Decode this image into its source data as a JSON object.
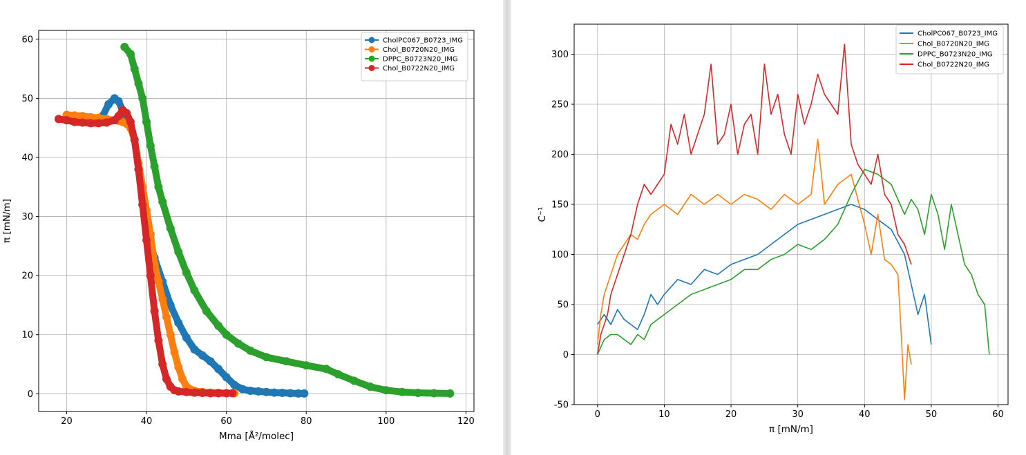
{
  "chart_data": [
    {
      "type": "scatter",
      "xlabel": "Mma [Å²/molec]",
      "ylabel": "π [mN/m]",
      "xlim": [
        13,
        122
      ],
      "ylim": [
        -3,
        61.5
      ],
      "xticks": [
        20,
        40,
        60,
        80,
        100,
        120
      ],
      "yticks": [
        0,
        10,
        20,
        30,
        40,
        50,
        60
      ],
      "grid": true,
      "legend_position": "top-right",
      "series": [
        {
          "name": "CholPC067_B0723_IMG",
          "color": "#1f77b4",
          "x": [
            29,
            30.5,
            32,
            33,
            34,
            35,
            36,
            37,
            38,
            39,
            40,
            42,
            44,
            46,
            48,
            50,
            52,
            54,
            56,
            58,
            60,
            62,
            64,
            66,
            68,
            70,
            72,
            74,
            76,
            78,
            79.5
          ],
          "y": [
            47,
            49,
            50,
            49.5,
            48,
            46,
            45,
            43,
            38,
            32,
            28,
            23,
            19,
            15,
            12,
            9.5,
            7.5,
            6.5,
            5.5,
            4.2,
            2.8,
            1.5,
            0.8,
            0.5,
            0.4,
            0.3,
            0.2,
            0.15,
            0.1,
            0.05,
            0.05
          ]
        },
        {
          "name": "Chol_B0720N20_IMG",
          "color": "#ff7f0e",
          "x": [
            20,
            22,
            24,
            26,
            28,
            30,
            32,
            33,
            34,
            35,
            36,
            37,
            38,
            39,
            40,
            41,
            42,
            43,
            44,
            45,
            46,
            47,
            48,
            49,
            50,
            52,
            54,
            56,
            58,
            60,
            62
          ],
          "y": [
            47.2,
            47.1,
            47,
            46.8,
            46.7,
            46.5,
            46.3,
            46.2,
            46,
            45.7,
            45,
            43,
            39,
            35,
            31,
            27,
            22,
            19,
            16,
            13,
            10,
            7,
            4.5,
            2.5,
            1.2,
            0.5,
            0.3,
            0.2,
            0.15,
            0.1,
            0.1
          ]
        },
        {
          "name": "DPPC_B0723N20_IMG",
          "color": "#2ca02c",
          "x": [
            34.5,
            36,
            37,
            38,
            39,
            40,
            41,
            42,
            43,
            44,
            46,
            48,
            50,
            52,
            55,
            58,
            60,
            63,
            66,
            70,
            75,
            80,
            85,
            88,
            92,
            96,
            100,
            104,
            108,
            112,
            116
          ],
          "y": [
            58.7,
            57.5,
            55,
            52.5,
            50,
            46,
            42,
            38.5,
            35,
            32.5,
            28,
            24,
            20.5,
            17.5,
            14,
            11.5,
            10,
            8.5,
            7.3,
            6.2,
            5.5,
            4.8,
            4.2,
            3.3,
            2.2,
            1.2,
            0.6,
            0.3,
            0.15,
            0.1,
            0.05
          ]
        },
        {
          "name": "Chol_B0722N20_IMG",
          "color": "#d62728",
          "x": [
            18,
            20,
            22,
            24,
            26,
            28,
            30,
            32,
            33,
            34,
            35,
            36,
            37,
            38,
            39,
            40,
            41,
            42,
            43,
            44,
            45,
            46,
            47,
            48,
            50,
            52,
            54,
            56,
            58,
            60,
            61.5
          ],
          "y": [
            46.5,
            46.3,
            46,
            45.9,
            45.8,
            45.8,
            45.9,
            46.3,
            47,
            48,
            47.5,
            46,
            43,
            38,
            32,
            26,
            20,
            14,
            9,
            5,
            2.5,
            1.2,
            0.6,
            0.4,
            0.3,
            0.2,
            0.15,
            0.1,
            0.1,
            0.1,
            0.1
          ]
        }
      ]
    },
    {
      "type": "line",
      "xlabel": "π [mN/m]",
      "ylabel": "C⁻¹",
      "xlim": [
        -3.5,
        61.5
      ],
      "ylim": [
        -50,
        330
      ],
      "xticks": [
        0,
        10,
        20,
        30,
        40,
        50,
        60
      ],
      "yticks": [
        -50,
        0,
        50,
        100,
        150,
        200,
        250,
        300
      ],
      "grid": true,
      "legend_position": "top-right",
      "series": [
        {
          "name": "CholPC067_B0723_IMG",
          "color": "#1f77b4",
          "x": [
            0,
            1,
            2,
            3,
            4,
            5,
            6,
            7,
            8,
            9,
            10,
            12,
            14,
            16,
            18,
            20,
            22,
            24,
            26,
            28,
            30,
            32,
            34,
            36,
            38,
            40,
            42,
            44,
            46,
            47,
            48,
            49,
            50
          ],
          "y": [
            30,
            40,
            30,
            45,
            35,
            30,
            25,
            40,
            60,
            50,
            60,
            75,
            70,
            85,
            80,
            90,
            95,
            100,
            110,
            120,
            130,
            135,
            140,
            145,
            150,
            145,
            135,
            125,
            100,
            70,
            40,
            60,
            10
          ]
        },
        {
          "name": "Chol_B0720N20_IMG",
          "color": "#ff7f0e",
          "x": [
            0,
            0.5,
            1,
            2,
            3,
            4,
            5,
            6,
            7,
            8,
            10,
            12,
            14,
            16,
            18,
            20,
            22,
            24,
            26,
            28,
            30,
            32,
            33,
            34,
            36,
            38,
            40,
            41,
            42,
            43,
            44,
            45,
            45.5,
            46,
            46.5,
            47
          ],
          "y": [
            10,
            40,
            60,
            80,
            100,
            110,
            120,
            115,
            130,
            140,
            150,
            140,
            160,
            150,
            160,
            150,
            160,
            155,
            145,
            160,
            150,
            160,
            215,
            150,
            170,
            180,
            130,
            100,
            140,
            95,
            90,
            80,
            20,
            -45,
            10,
            -10
          ]
        },
        {
          "name": "DPPC_B0723N20_IMG",
          "color": "#2ca02c",
          "x": [
            0,
            1,
            2,
            3,
            4,
            5,
            6,
            7,
            8,
            10,
            12,
            14,
            16,
            18,
            20,
            22,
            24,
            26,
            28,
            30,
            32,
            34,
            36,
            38,
            40,
            42,
            44,
            46,
            47,
            48,
            49,
            50,
            51,
            52,
            53,
            54,
            55,
            56,
            57,
            58,
            58.7
          ],
          "y": [
            0,
            15,
            20,
            20,
            15,
            10,
            20,
            15,
            30,
            40,
            50,
            60,
            65,
            70,
            75,
            85,
            85,
            95,
            100,
            110,
            105,
            115,
            130,
            160,
            185,
            180,
            170,
            140,
            155,
            145,
            120,
            160,
            140,
            105,
            150,
            120,
            90,
            80,
            60,
            50,
            0
          ]
        },
        {
          "name": "Chol_B0722N20_IMG",
          "color": "#d62728",
          "x": [
            0,
            0.5,
            1,
            1.5,
            2,
            3,
            4,
            5,
            6,
            7,
            8,
            10,
            11,
            12,
            13,
            14,
            15,
            16,
            17,
            18,
            19,
            20,
            21,
            22,
            23,
            24,
            25,
            26,
            27,
            28,
            29,
            30,
            31,
            32,
            33,
            34,
            35,
            36,
            37,
            38,
            39,
            40,
            41,
            42,
            43,
            44,
            45,
            46,
            47
          ],
          "y": [
            0,
            20,
            30,
            40,
            60,
            80,
            100,
            120,
            150,
            170,
            160,
            180,
            230,
            210,
            240,
            200,
            220,
            240,
            290,
            210,
            220,
            250,
            200,
            230,
            240,
            200,
            290,
            240,
            260,
            220,
            200,
            260,
            230,
            250,
            280,
            260,
            250,
            240,
            310,
            210,
            190,
            180,
            170,
            200,
            160,
            150,
            120,
            110,
            90
          ]
        }
      ]
    }
  ]
}
